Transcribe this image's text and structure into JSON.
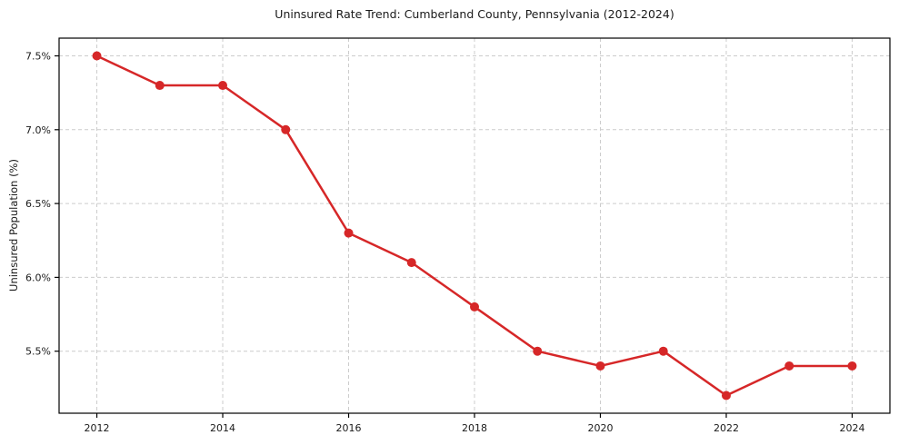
{
  "chart_data": {
    "type": "line",
    "title": "Uninsured Rate Trend: Cumberland County, Pennsylvania (2012-2024)",
    "xlabel": "",
    "ylabel": "Uninsured Population (%)",
    "x": [
      2012,
      2013,
      2014,
      2015,
      2016,
      2017,
      2018,
      2019,
      2020,
      2021,
      2022,
      2023,
      2024
    ],
    "values": [
      7.5,
      7.3,
      7.3,
      7.0,
      6.3,
      6.1,
      5.8,
      5.5,
      5.4,
      5.5,
      5.2,
      5.4,
      5.4
    ],
    "xlim": [
      2011.4,
      2024.6
    ],
    "ylim": [
      5.08,
      7.62
    ],
    "xtick_values": [
      2012,
      2014,
      2016,
      2018,
      2020,
      2022,
      2024
    ],
    "xtick_labels": [
      "2012",
      "2014",
      "2016",
      "2018",
      "2020",
      "2022",
      "2024"
    ],
    "ytick_values": [
      5.5,
      6.0,
      6.5,
      7.0,
      7.5
    ],
    "ytick_labels": [
      "5.5%",
      "6.0%",
      "6.5%",
      "7.0%",
      "7.5%"
    ],
    "grid": true,
    "grid_style": "dashed",
    "legend": false,
    "line_color": "#d62728",
    "marker": "circle",
    "marker_color": "#d62728",
    "grid_color": "#cccccc",
    "axis_color": "#000000",
    "text_color": "#1a1a1a",
    "background_color": "#ffffff"
  }
}
